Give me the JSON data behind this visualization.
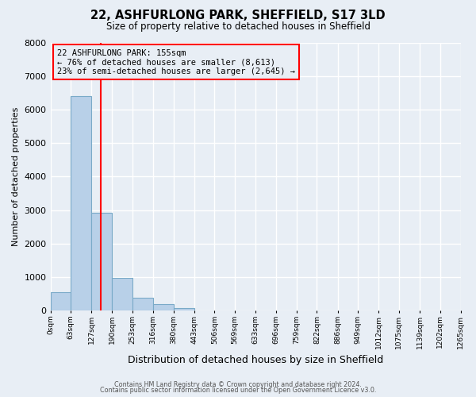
{
  "title": "22, ASHFURLONG PARK, SHEFFIELD, S17 3LD",
  "subtitle": "Size of property relative to detached houses in Sheffield",
  "xlabel": "Distribution of detached houses by size in Sheffield",
  "ylabel": "Number of detached properties",
  "bin_edges": [
    0,
    63,
    127,
    190,
    253,
    316,
    380,
    443,
    506,
    569,
    633,
    696,
    759,
    822,
    886,
    949,
    1012,
    1075,
    1139,
    1202,
    1265
  ],
  "bin_labels": [
    "0sqm",
    "63sqm",
    "127sqm",
    "190sqm",
    "253sqm",
    "316sqm",
    "380sqm",
    "443sqm",
    "506sqm",
    "569sqm",
    "633sqm",
    "696sqm",
    "759sqm",
    "822sqm",
    "886sqm",
    "949sqm",
    "1012sqm",
    "1075sqm",
    "1139sqm",
    "1202sqm",
    "1265sqm"
  ],
  "bar_heights": [
    550,
    6400,
    2930,
    980,
    380,
    180,
    80,
    0,
    0,
    0,
    0,
    0,
    0,
    0,
    0,
    0,
    0,
    0,
    0,
    0
  ],
  "bar_color": "#b8d0e8",
  "bar_edge_color": "#7aaac8",
  "property_size": 155,
  "vline_color": "red",
  "annotation_title": "22 ASHFURLONG PARK: 155sqm",
  "annotation_line1": "← 76% of detached houses are smaller (8,613)",
  "annotation_line2": "23% of semi-detached houses are larger (2,645) →",
  "annotation_box_color": "red",
  "ylim": [
    0,
    8000
  ],
  "yticks": [
    0,
    1000,
    2000,
    3000,
    4000,
    5000,
    6000,
    7000,
    8000
  ],
  "background_color": "#e8eef5",
  "grid_color": "#ffffff",
  "footer_line1": "Contains HM Land Registry data © Crown copyright and database right 2024.",
  "footer_line2": "Contains public sector information licensed under the Open Government Licence v3.0."
}
